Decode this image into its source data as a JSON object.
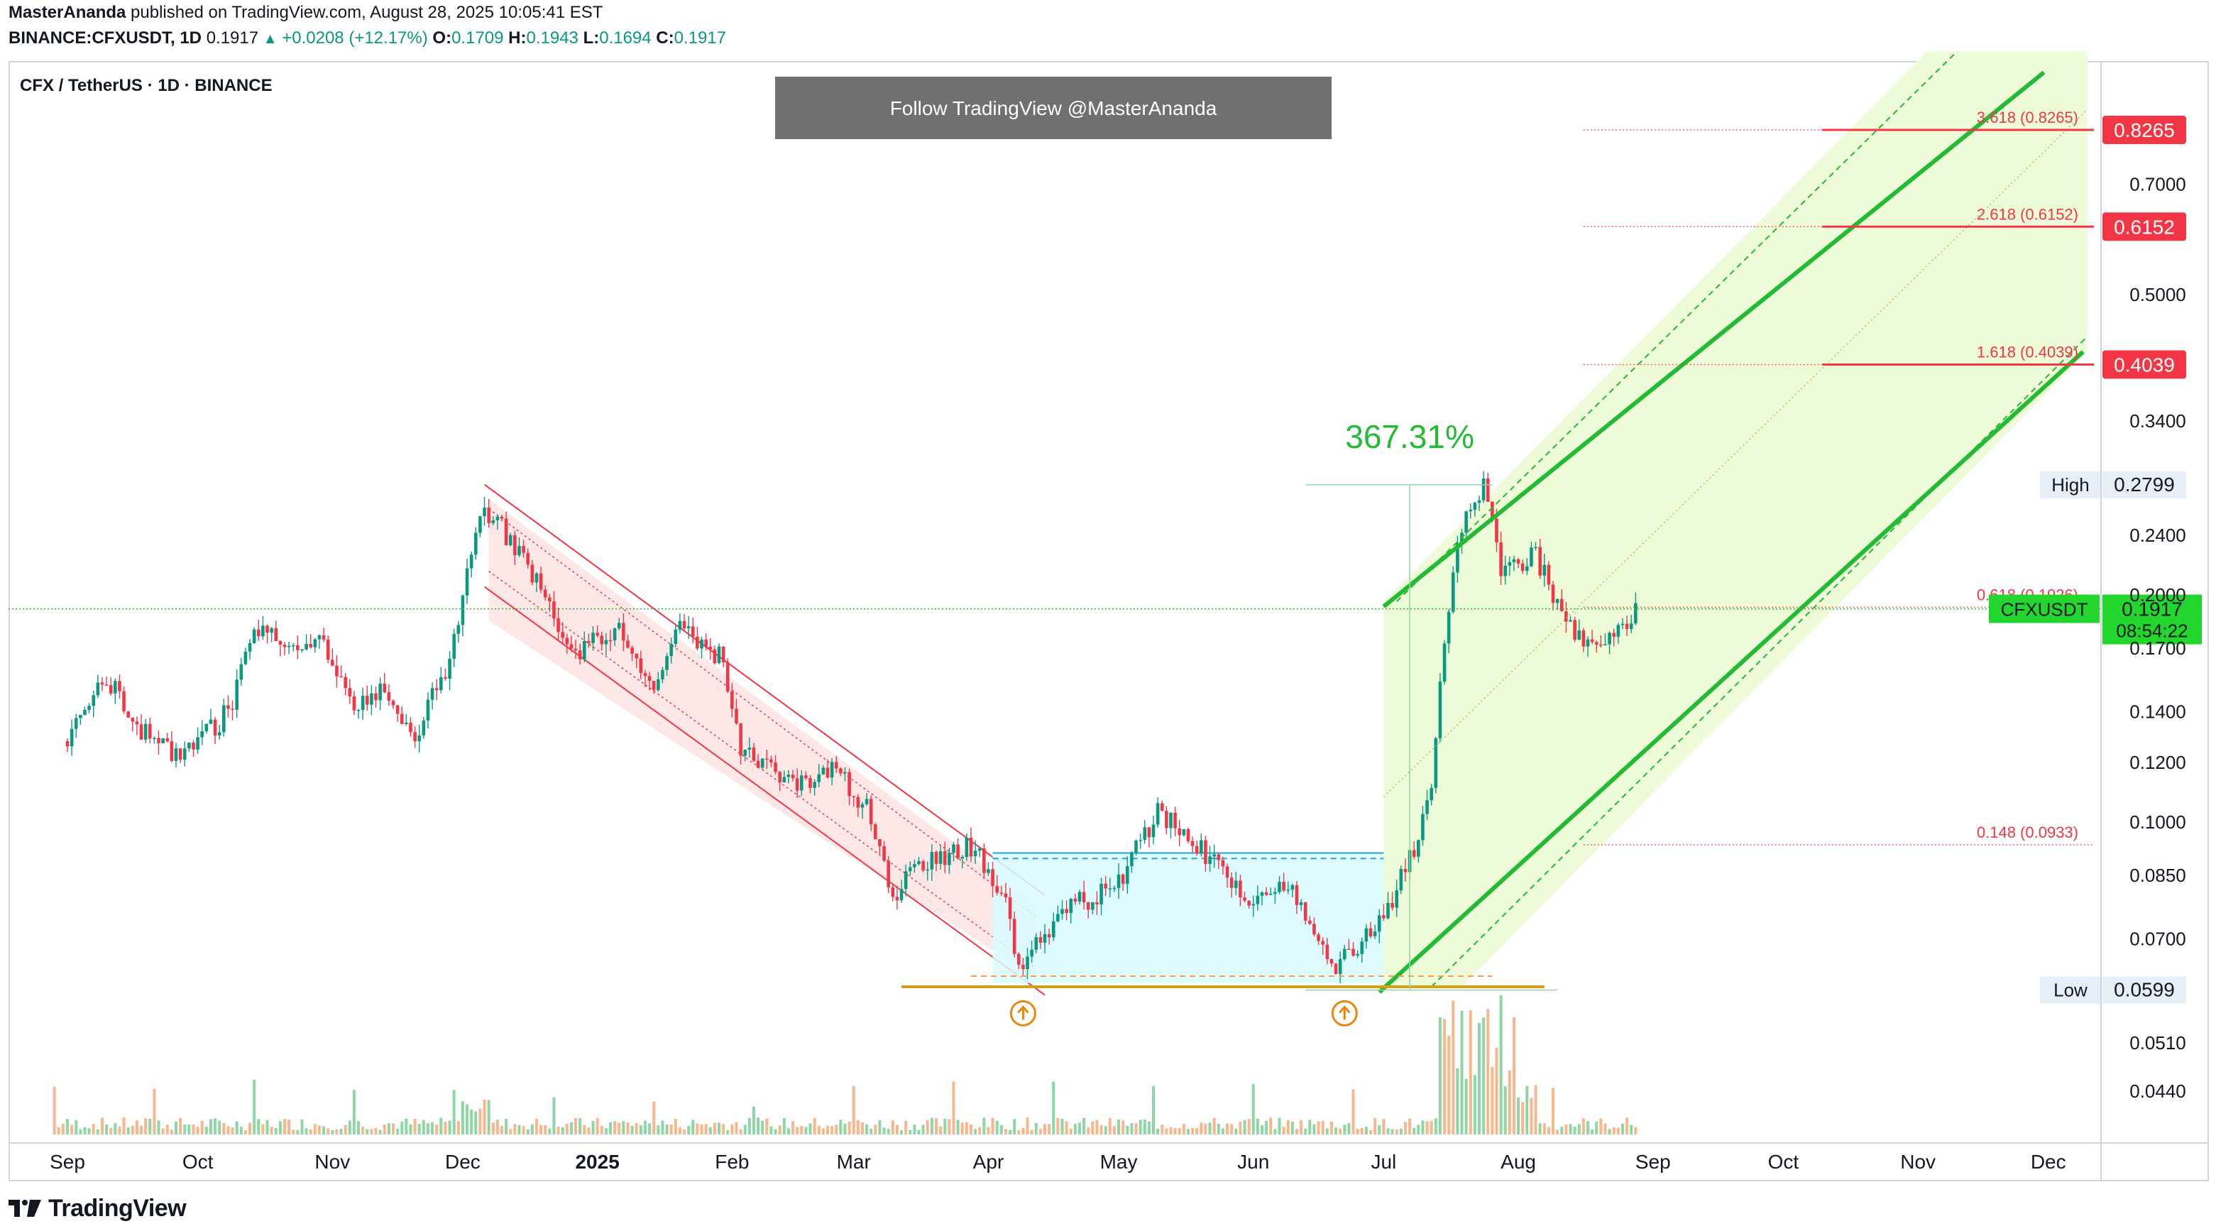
{
  "header": {
    "author": "MasterAnanda",
    "published_text": "published on TradingView.com, August 28, 2025 10:05:41 EST",
    "symbol": "BINANCE:CFXUSDT, 1D",
    "last": "0.1917",
    "change": "+0.0208 (+12.17%)",
    "o_label": "O:",
    "o": "0.1709",
    "h_label": "H:",
    "h": "0.1943",
    "l_label": "L:",
    "l": "0.1694",
    "c_label": "C:",
    "c": "0.1917"
  },
  "chart_title": "CFX / TetherUS · 1D · BINANCE",
  "banner": "Follow TradingView @MasterAnanda",
  "footer_brand": "TradingView",
  "colors": {
    "up": "#089981",
    "down": "#f23645",
    "green_line": "#22bb33",
    "fib": "#f23645",
    "support": "#d4a017",
    "range_fill": "#d8fbff",
    "channel_fill": "#fde4e4",
    "target_fill": "#eefbd9"
  },
  "chart_data": {
    "type": "candlestick",
    "scale": "log",
    "x_axis_labels": [
      "Sep",
      "Oct",
      "Nov",
      "Dec",
      "2025",
      "Feb",
      "Mar",
      "Apr",
      "May",
      "Jun",
      "Jul",
      "Aug",
      "Sep",
      "Oct",
      "Nov",
      "Dec"
    ],
    "y_axis_ticks": [
      "0.7000",
      "0.5000",
      "0.3400",
      "0.2400",
      "0.2000",
      "0.1700",
      "0.1400",
      "0.1200",
      "0.1000",
      "0.0850",
      "0.0700",
      "0.0510",
      "0.0440"
    ],
    "close_path": [
      [
        "2024-09-01",
        0.128
      ],
      [
        "2024-09-10",
        0.156
      ],
      [
        "2024-09-20",
        0.128
      ],
      [
        "2024-09-28",
        0.122
      ],
      [
        "2024-10-08",
        0.14
      ],
      [
        "2024-10-15",
        0.182
      ],
      [
        "2024-10-22",
        0.168
      ],
      [
        "2024-10-30",
        0.175
      ],
      [
        "2024-11-05",
        0.142
      ],
      [
        "2024-11-12",
        0.15
      ],
      [
        "2024-11-20",
        0.13
      ],
      [
        "2024-11-27",
        0.16
      ],
      [
        "2024-12-06",
        0.262
      ],
      [
        "2024-12-10",
        0.245
      ],
      [
        "2024-12-18",
        0.21
      ],
      [
        "2024-12-26",
        0.168
      ],
      [
        "2025-01-06",
        0.178
      ],
      [
        "2025-01-14",
        0.15
      ],
      [
        "2025-01-20",
        0.18
      ],
      [
        "2025-01-30",
        0.165
      ],
      [
        "2025-02-03",
        0.125
      ],
      [
        "2025-02-14",
        0.112
      ],
      [
        "2025-02-24",
        0.118
      ],
      [
        "2025-03-04",
        0.104
      ],
      [
        "2025-03-10",
        0.08
      ],
      [
        "2025-03-18",
        0.089
      ],
      [
        "2025-03-28",
        0.093
      ],
      [
        "2025-04-04",
        0.082
      ],
      [
        "2025-04-08",
        0.064
      ],
      [
        "2025-04-20",
        0.078
      ],
      [
        "2025-04-30",
        0.081
      ],
      [
        "2025-05-10",
        0.104
      ],
      [
        "2025-05-20",
        0.092
      ],
      [
        "2025-05-30",
        0.08
      ],
      [
        "2025-06-10",
        0.082
      ],
      [
        "2025-06-20",
        0.064
      ],
      [
        "2025-06-30",
        0.073
      ],
      [
        "2025-07-08",
        0.092
      ],
      [
        "2025-07-12",
        0.108
      ],
      [
        "2025-07-15",
        0.175
      ],
      [
        "2025-07-18",
        0.24
      ],
      [
        "2025-07-24",
        0.279
      ],
      [
        "2025-07-28",
        0.215
      ],
      [
        "2025-08-05",
        0.225
      ],
      [
        "2025-08-12",
        0.185
      ],
      [
        "2025-08-18",
        0.168
      ],
      [
        "2025-08-24",
        0.18
      ],
      [
        "2025-08-28",
        0.1917
      ]
    ],
    "volume_note": "volume bars along bottom, large spikes mid-July 2025",
    "annotations": [
      {
        "type": "measure",
        "label": "367.31%",
        "from": 0.0599,
        "to": 0.2799
      },
      {
        "type": "fib_level",
        "label": "3.618 (0.8265)",
        "value": 0.8265,
        "badge": "0.8265"
      },
      {
        "type": "fib_level",
        "label": "2.618 (0.6152)",
        "value": 0.6152,
        "badge": "0.6152"
      },
      {
        "type": "fib_level",
        "label": "1.618 (0.4039)",
        "value": 0.4039,
        "badge": "0.4039"
      },
      {
        "type": "fib_level",
        "label": "0.618 (0.1926)",
        "value": 0.1926
      },
      {
        "type": "fib_level",
        "label": "0.148 (0.0933)",
        "value": 0.0933
      },
      {
        "type": "price_tag",
        "label": "High",
        "value": "0.2799"
      },
      {
        "type": "price_tag",
        "label": "Low",
        "value": "0.0599"
      },
      {
        "type": "last_price",
        "label": "CFXUSDT",
        "value": "0.1917",
        "countdown": "08:54:22"
      }
    ]
  }
}
